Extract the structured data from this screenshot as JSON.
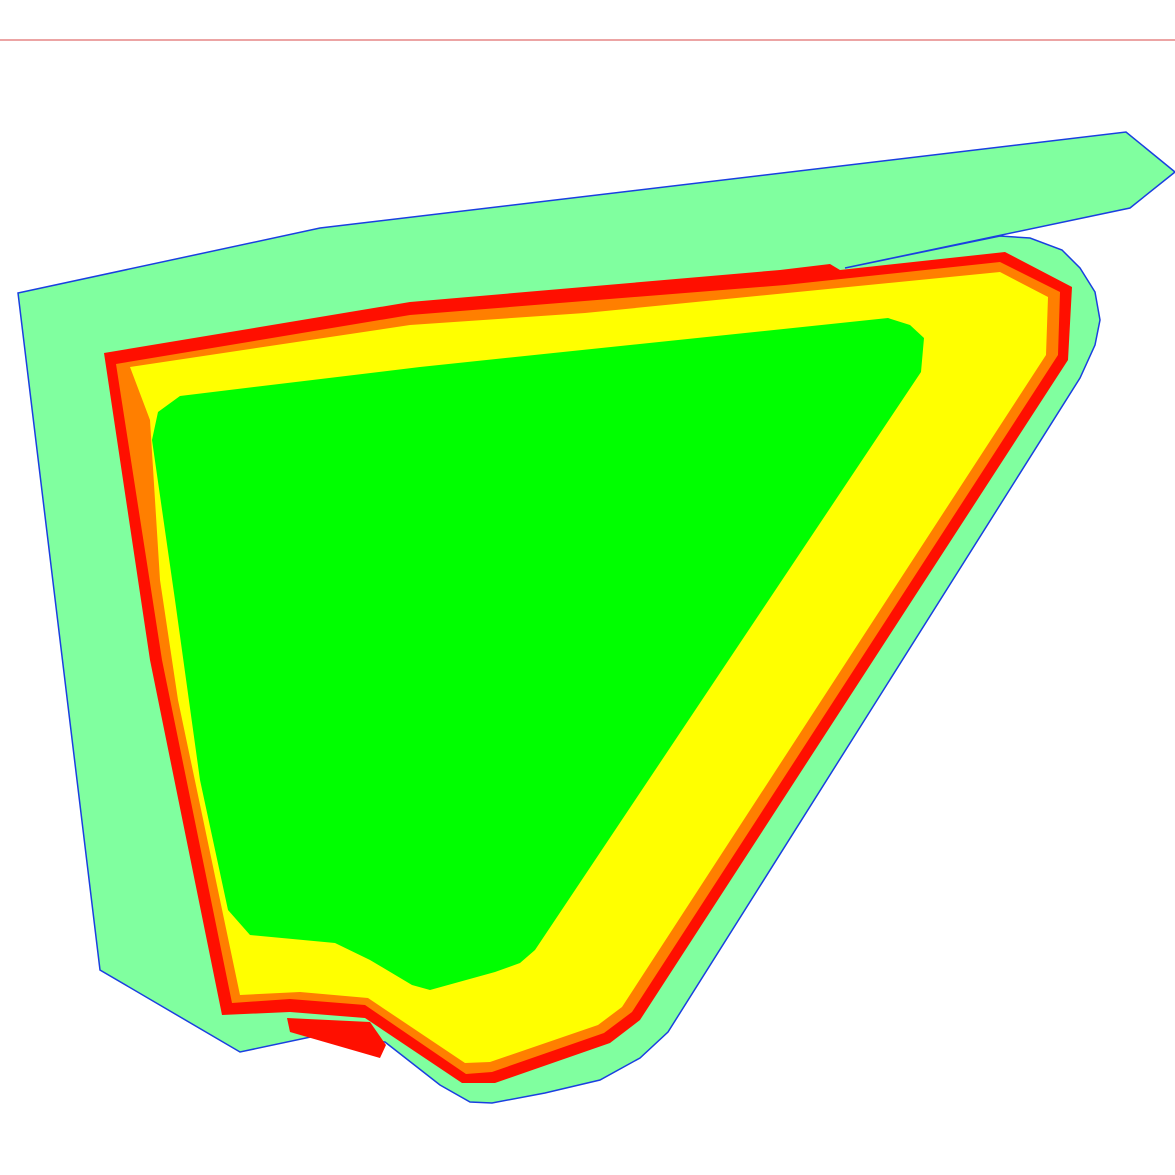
{
  "map": {
    "zones": [
      {
        "id": "outer-boundary",
        "fill": "#80ff9f",
        "stroke": "#1a3fe0"
      },
      {
        "id": "red-band",
        "fill": "#ff0f00"
      },
      {
        "id": "orange-band",
        "fill": "#ff7f00"
      },
      {
        "id": "yellow-band",
        "fill": "#ffff00"
      },
      {
        "id": "inner-core",
        "fill": "#00ff00"
      }
    ],
    "header_rule_color": "#d94a4a"
  }
}
